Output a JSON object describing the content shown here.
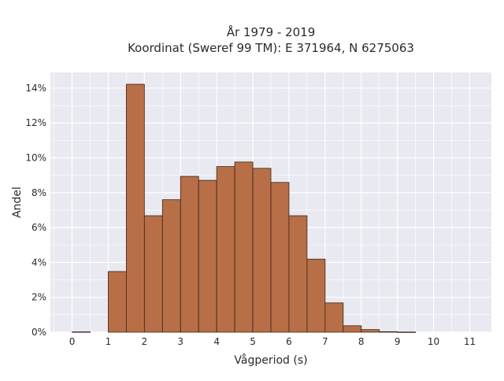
{
  "chart_data": {
    "type": "bar",
    "title_line1": "År 1979 - 2019",
    "title_line2": "Koordinat (Sweref 99 TM): E 371964, N 6275063",
    "xlabel": "Vågperiod (s)",
    "ylabel": "Andel",
    "xlim": [
      -0.6,
      11.6
    ],
    "ylim": [
      0,
      0.149
    ],
    "x_ticks": [
      0,
      1,
      2,
      3,
      4,
      5,
      6,
      7,
      8,
      9,
      10,
      11
    ],
    "x_tick_labels": [
      "0",
      "1",
      "2",
      "3",
      "4",
      "5",
      "6",
      "7",
      "8",
      "9",
      "10",
      "11"
    ],
    "y_ticks": [
      0,
      0.02,
      0.04,
      0.06,
      0.08,
      0.1,
      0.12,
      0.14
    ],
    "y_tick_labels": [
      "0%",
      "2%",
      "4%",
      "6%",
      "8%",
      "10%",
      "12%",
      "14%"
    ],
    "bin_width": 0.5,
    "bin_starts": [
      0,
      1,
      1.5,
      2,
      2.5,
      3,
      3.5,
      4,
      4.5,
      5,
      5.5,
      6,
      6.5,
      7,
      7.5,
      8,
      8.5,
      9
    ],
    "values": [
      0.0002,
      0.0348,
      0.1422,
      0.0668,
      0.076,
      0.0894,
      0.0871,
      0.095,
      0.0976,
      0.094,
      0.0859,
      0.0668,
      0.0419,
      0.0168,
      0.0037,
      0.0015,
      0.0003,
      0.0001
    ],
    "grid": true,
    "legend": "none",
    "bar_color": "#b86f47",
    "bar_edge_color": "#3a2515",
    "background_color": "#e9e9f1",
    "grid_color": "#ffffff"
  }
}
